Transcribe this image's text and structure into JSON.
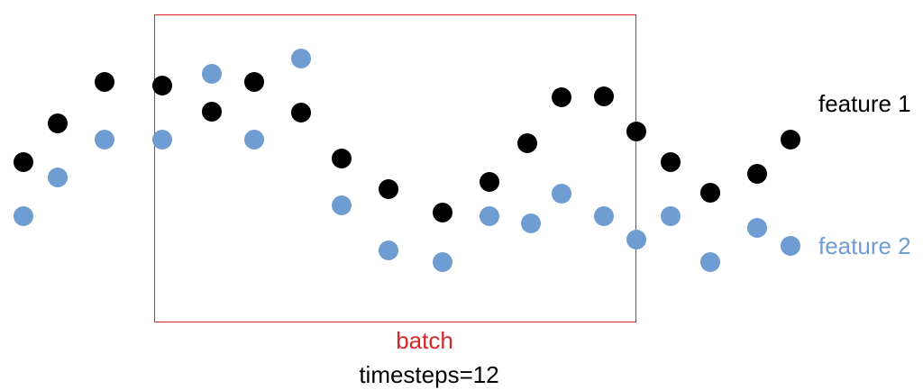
{
  "colors": {
    "feature1": "#000000",
    "feature2": "#6f9dd2",
    "batch": "#d62728"
  },
  "labels": {
    "feature1": "feature 1",
    "feature2": "feature 2",
    "batch": "batch",
    "timesteps": "timesteps=12"
  }
}
